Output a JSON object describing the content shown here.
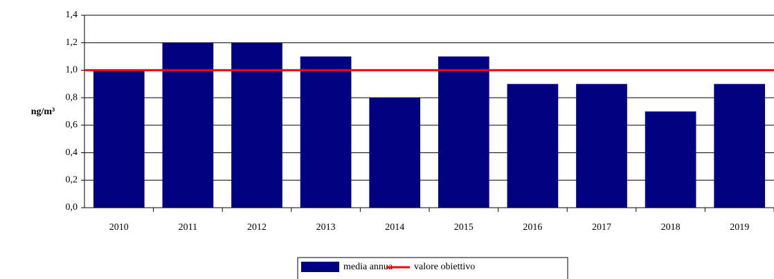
{
  "chart_data": {
    "type": "bar",
    "ylabel": "ng/m³",
    "categories": [
      "2010",
      "2011",
      "2012",
      "2013",
      "2014",
      "2015",
      "2016",
      "2017",
      "2018",
      "2019"
    ],
    "series": [
      {
        "name": "media annua",
        "color": "#000080",
        "values": [
          1.0,
          1.2,
          1.2,
          1.1,
          0.8,
          1.1,
          0.9,
          0.9,
          0.7,
          0.9
        ]
      }
    ],
    "reference_lines": [
      {
        "name": "valore obiettivo",
        "value": 1.0,
        "color": "#ff0000"
      }
    ],
    "ylim": [
      0,
      1.4
    ],
    "yticks": [
      {
        "value": 0,
        "label": "0,0"
      },
      {
        "value": 0.2,
        "label": "0,2"
      },
      {
        "value": 0.4,
        "label": "0,4"
      },
      {
        "value": 0.6,
        "label": "0,6"
      },
      {
        "value": 0.8,
        "label": "0,8"
      },
      {
        "value": 1.0,
        "label": "1,0"
      },
      {
        "value": 1.2,
        "label": "1,2"
      },
      {
        "value": 1.4,
        "label": "1,4"
      }
    ],
    "grid": true,
    "legend": "bottom"
  }
}
